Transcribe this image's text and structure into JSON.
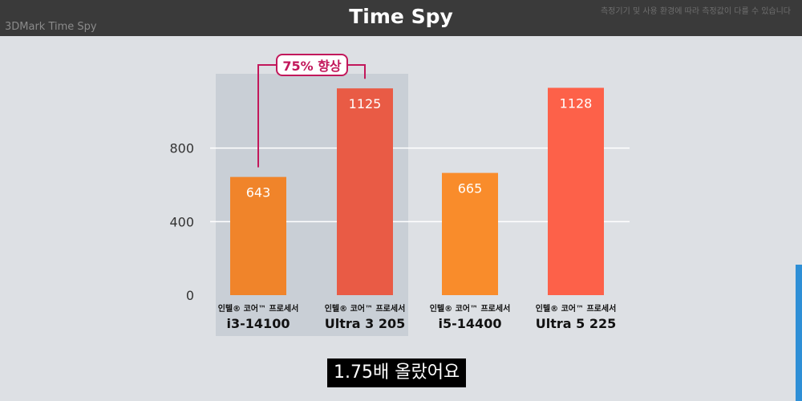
{
  "header": {
    "title": "Time Spy",
    "subtitle": "3DMark Time Spy",
    "disclaimer": "측정기기 및 사용 환경에 따라 측정값이 다를 수 있습니다"
  },
  "annotation": {
    "badge": "75% 향상"
  },
  "caption": "1.75배 올랐어요",
  "colors": {
    "orange": "#f0842a",
    "red": "#e95b45",
    "bright_orange": "#f98c2b",
    "coral": "#fd6149",
    "accent": "#c2185b"
  },
  "chart_data": {
    "type": "bar",
    "categories": [
      {
        "line1": "인텔® 코어™ 프로세서",
        "line2": "i3-14100"
      },
      {
        "line1": "인텔® 코어™ 프로세서",
        "line2": "Ultra 3 205"
      },
      {
        "line1": "인텔® 코어™ 프로세서",
        "line2": "i5-14400"
      },
      {
        "line1": "인텔® 코어™ 프로세서",
        "line2": "Ultra 5 225"
      }
    ],
    "values": [
      643,
      1125,
      665,
      1128
    ],
    "bar_colors": [
      "#f0842a",
      "#e95b45",
      "#f98c2b",
      "#fd6149"
    ],
    "y_ticks": [
      0,
      400,
      800
    ],
    "ylim": [
      0,
      1200
    ],
    "grid": true,
    "highlighted_group": [
      0,
      1
    ]
  }
}
